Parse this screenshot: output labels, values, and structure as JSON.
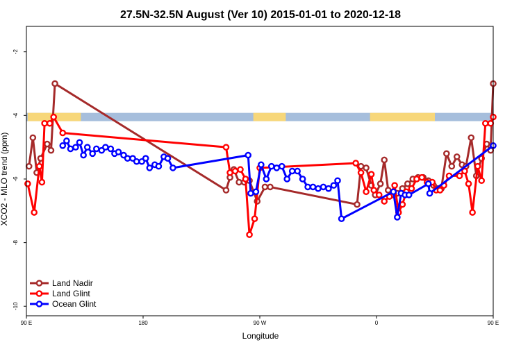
{
  "chart_data": {
    "type": "line",
    "title": "27.5N-32.5N August (Ver 10)   2015-01-01 to 2020-12-18",
    "xlabel": "Longitude",
    "ylabel": "XCO2 - MLO trend (ppm)",
    "xlim": [
      90,
      450
    ],
    "ylim": [
      -10.3,
      -1.2
    ],
    "x_ticks": [
      {
        "value": 90,
        "label": "90 E"
      },
      {
        "value": 180,
        "label": "180"
      },
      {
        "value": 270,
        "label": "90 W"
      },
      {
        "value": 360,
        "label": "0"
      },
      {
        "value": 450,
        "label": "90 E"
      },
      {
        "value": 540,
        "label": "180"
      }
    ],
    "x_ticks_note": "",
    "y_ticks": [
      {
        "value": -10,
        "label": "-10"
      },
      {
        "value": -8,
        "label": "-8"
      },
      {
        "value": -6,
        "label": "-6"
      },
      {
        "value": -4,
        "label": "-4"
      },
      {
        "value": -2,
        "label": "-2"
      }
    ],
    "grid": false,
    "legend_position": "bottom-left",
    "surface_strip": {
      "y_range": [
        -4.18,
        -3.92
      ],
      "ocean_color": "#a6bedc",
      "land_color": "#f7d77a",
      "land_segments": [
        [
          91,
          132
        ],
        [
          265,
          290
        ],
        [
          355,
          405
        ],
        [
          499,
          541
        ]
      ]
    },
    "series": [
      {
        "name": "Land Nadir",
        "color": "#a52a2a",
        "points": [
          {
            "x": 92,
            "y": -5.6
          },
          {
            "x": 95,
            "y": -4.7
          },
          {
            "x": 98,
            "y": -5.8
          },
          {
            "x": 101,
            "y": -5.35
          },
          {
            "x": 106,
            "y": -4.9
          },
          {
            "x": 109,
            "y": -5.1
          },
          {
            "x": 112,
            "y": -3.0
          },
          {
            "x": 244,
            "y": -6.35
          },
          {
            "x": 247,
            "y": -5.95
          },
          {
            "x": 250,
            "y": -5.7
          },
          {
            "x": 254,
            "y": -6.1
          },
          {
            "x": 258,
            "y": -6.1
          },
          {
            "x": 262,
            "y": -6.05
          },
          {
            "x": 268,
            "y": -6.7
          },
          {
            "x": 274,
            "y": -6.25
          },
          {
            "x": 278,
            "y": -6.25
          },
          {
            "x": 345,
            "y": -6.8
          },
          {
            "x": 348,
            "y": -5.6
          },
          {
            "x": 352,
            "y": -5.65
          },
          {
            "x": 356,
            "y": -6.2
          },
          {
            "x": 359,
            "y": -6.5
          },
          {
            "x": 363,
            "y": -6.15
          },
          {
            "x": 366,
            "y": -5.4
          },
          {
            "x": 369,
            "y": -6.35
          },
          {
            "x": 372,
            "y": -6.5
          },
          {
            "x": 376,
            "y": -6.45
          },
          {
            "x": 380,
            "y": -6.3
          },
          {
            "x": 384,
            "y": -6.15
          },
          {
            "x": 388,
            "y": -6.0
          },
          {
            "x": 392,
            "y": -5.95
          },
          {
            "x": 396,
            "y": -5.95
          },
          {
            "x": 400,
            "y": -6.05
          },
          {
            "x": 404,
            "y": -6.2
          },
          {
            "x": 407,
            "y": -6.3
          },
          {
            "x": 410,
            "y": -6.3
          },
          {
            "x": 414,
            "y": -5.2
          },
          {
            "x": 418,
            "y": -5.6
          },
          {
            "x": 422,
            "y": -5.3
          },
          {
            "x": 426,
            "y": -5.55
          },
          {
            "x": 429,
            "y": -5.6
          },
          {
            "x": 433,
            "y": -4.7
          },
          {
            "x": 437,
            "y": -5.9
          },
          {
            "x": 441,
            "y": -5.35
          },
          {
            "x": 445,
            "y": -4.9
          },
          {
            "x": 448,
            "y": -5.1
          },
          {
            "x": 450,
            "y": -3.0
          }
        ]
      },
      {
        "name": "Land Glint",
        "color": "#ff0000",
        "points": [
          {
            "x": 91,
            "y": -6.15
          },
          {
            "x": 96,
            "y": -7.05
          },
          {
            "x": 100,
            "y": -5.6
          },
          {
            "x": 102,
            "y": -6.1
          },
          {
            "x": 104,
            "y": -4.25
          },
          {
            "x": 108,
            "y": -4.25
          },
          {
            "x": 111,
            "y": -4.05
          },
          {
            "x": 118,
            "y": -4.55
          },
          {
            "x": 244,
            "y": -5.0
          },
          {
            "x": 247,
            "y": -5.8
          },
          {
            "x": 251,
            "y": -5.75
          },
          {
            "x": 255,
            "y": -5.7
          },
          {
            "x": 259,
            "y": -6.0
          },
          {
            "x": 262,
            "y": -7.75
          },
          {
            "x": 266,
            "y": -7.25
          },
          {
            "x": 270,
            "y": -5.65
          },
          {
            "x": 344,
            "y": -5.5
          },
          {
            "x": 348,
            "y": -5.8
          },
          {
            "x": 352,
            "y": -6.4
          },
          {
            "x": 356,
            "y": -5.85
          },
          {
            "x": 358,
            "y": -6.35
          },
          {
            "x": 362,
            "y": -6.5
          },
          {
            "x": 366,
            "y": -6.7
          },
          {
            "x": 370,
            "y": -6.55
          },
          {
            "x": 374,
            "y": -6.2
          },
          {
            "x": 377,
            "y": -7.05
          },
          {
            "x": 380,
            "y": -6.8
          },
          {
            "x": 383,
            "y": -6.4
          },
          {
            "x": 387,
            "y": -6.3
          },
          {
            "x": 391,
            "y": -6.0
          },
          {
            "x": 395,
            "y": -5.95
          },
          {
            "x": 399,
            "y": -6.1
          },
          {
            "x": 403,
            "y": -6.1
          },
          {
            "x": 406,
            "y": -6.35
          },
          {
            "x": 409,
            "y": -6.35
          },
          {
            "x": 412,
            "y": -6.2
          },
          {
            "x": 416,
            "y": -5.9
          },
          {
            "x": 424,
            "y": -5.9
          },
          {
            "x": 428,
            "y": -5.75
          },
          {
            "x": 431,
            "y": -6.15
          },
          {
            "x": 434,
            "y": -7.05
          },
          {
            "x": 438,
            "y": -5.6
          },
          {
            "x": 441,
            "y": -6.05
          },
          {
            "x": 444,
            "y": -4.25
          },
          {
            "x": 448,
            "y": -4.25
          },
          {
            "x": 450,
            "y": -4.05
          }
        ]
      },
      {
        "name": "Ocean Glint",
        "color": "#0000ff",
        "points": [
          {
            "x": 118,
            "y": -4.95
          },
          {
            "x": 121,
            "y": -4.8
          },
          {
            "x": 124,
            "y": -5.05
          },
          {
            "x": 128,
            "y": -5.0
          },
          {
            "x": 131,
            "y": -4.85
          },
          {
            "x": 134,
            "y": -5.25
          },
          {
            "x": 137,
            "y": -5.0
          },
          {
            "x": 141,
            "y": -5.2
          },
          {
            "x": 144,
            "y": -5.05
          },
          {
            "x": 148,
            "y": -5.1
          },
          {
            "x": 151,
            "y": -5.0
          },
          {
            "x": 155,
            "y": -5.05
          },
          {
            "x": 158,
            "y": -5.2
          },
          {
            "x": 161,
            "y": -5.15
          },
          {
            "x": 165,
            "y": -5.25
          },
          {
            "x": 168,
            "y": -5.35
          },
          {
            "x": 172,
            "y": -5.35
          },
          {
            "x": 175,
            "y": -5.45
          },
          {
            "x": 179,
            "y": -5.45
          },
          {
            "x": 182,
            "y": -5.35
          },
          {
            "x": 185,
            "y": -5.65
          },
          {
            "x": 189,
            "y": -5.55
          },
          {
            "x": 192,
            "y": -5.6
          },
          {
            "x": 196,
            "y": -5.3
          },
          {
            "x": 199,
            "y": -5.35
          },
          {
            "x": 203,
            "y": -5.65
          },
          {
            "x": 261,
            "y": -5.25
          },
          {
            "x": 263,
            "y": -6.45
          },
          {
            "x": 267,
            "y": -6.4
          },
          {
            "x": 271,
            "y": -5.55
          },
          {
            "x": 275,
            "y": -6.0
          },
          {
            "x": 279,
            "y": -5.6
          },
          {
            "x": 283,
            "y": -5.65
          },
          {
            "x": 287,
            "y": -5.6
          },
          {
            "x": 291,
            "y": -6.0
          },
          {
            "x": 295,
            "y": -5.75
          },
          {
            "x": 299,
            "y": -5.75
          },
          {
            "x": 303,
            "y": -6.0
          },
          {
            "x": 307,
            "y": -6.25
          },
          {
            "x": 311,
            "y": -6.25
          },
          {
            "x": 315,
            "y": -6.3
          },
          {
            "x": 319,
            "y": -6.25
          },
          {
            "x": 323,
            "y": -6.3
          },
          {
            "x": 327,
            "y": -6.2
          },
          {
            "x": 330,
            "y": -6.05
          },
          {
            "x": 333,
            "y": -7.25
          },
          {
            "x": 373,
            "y": -6.4
          },
          {
            "x": 376,
            "y": -7.2
          },
          {
            "x": 379,
            "y": -6.45
          },
          {
            "x": 382,
            "y": -6.5
          },
          {
            "x": 385,
            "y": -6.5
          },
          {
            "x": 400,
            "y": -6.15
          },
          {
            "x": 401,
            "y": -6.45
          },
          {
            "x": 450,
            "y": -4.95
          },
          {
            "x": 453,
            "y": -4.8
          },
          {
            "x": 456,
            "y": -5.05
          },
          {
            "x": 460,
            "y": -5.0
          },
          {
            "x": 463,
            "y": -4.85
          },
          {
            "x": 466,
            "y": -5.25
          },
          {
            "x": 469,
            "y": -5.0
          },
          {
            "x": 473,
            "y": -5.2
          },
          {
            "x": 476,
            "y": -5.05
          },
          {
            "x": 480,
            "y": -5.1
          },
          {
            "x": 483,
            "y": -5.0
          },
          {
            "x": 487,
            "y": -5.05
          },
          {
            "x": 490,
            "y": -5.2
          }
        ]
      }
    ]
  }
}
